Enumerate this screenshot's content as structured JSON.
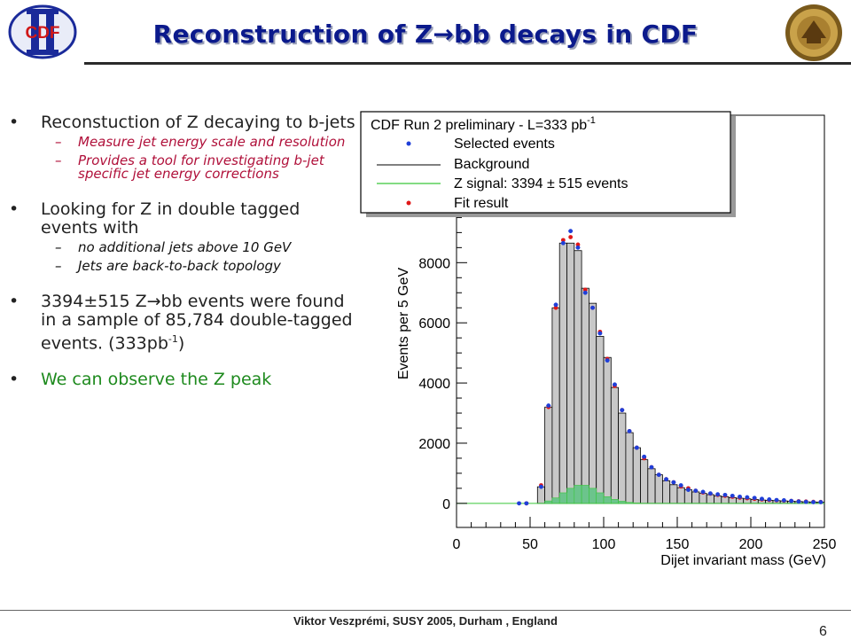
{
  "slide": {
    "title": "Reconstruction of Z→bb decays in CDF",
    "footer": "Viktor Veszprémi, SUSY 2005, Durham , England",
    "page_number": "6",
    "logo_left_text": "CDF"
  },
  "bullets": [
    {
      "text": "Reconstuction of Z decaying to b-jets",
      "subs": [
        "Measure jet energy scale and resolution",
        "Provides a tool for investigating b-jet specific jet energy corrections"
      ]
    },
    {
      "text": "Looking for Z in double tagged events with",
      "subs": [
        "no additional jets above 10 GeV",
        "Jets are back-to-back topology"
      ]
    },
    {
      "text_a": "3394±515 Z",
      "arrow": "→",
      "text_b": "bb events were found in a sample of 85,784 double-tagged events. (333pb",
      "sup": "-1",
      "text_c": ")"
    },
    {
      "text": "We can observe the Z peak"
    }
  ],
  "chart_data": {
    "type": "bar",
    "title": "CDF Run 2 preliminary - L=333 pb",
    "title_sup": "-1",
    "xlabel": "Dijet invariant mass (GeV)",
    "ylabel": "Events per 5 GeV",
    "xlim": [
      0,
      250
    ],
    "ylim": [
      -800,
      12900
    ],
    "xticks": [
      "0",
      "50",
      "100",
      "150",
      "200",
      "250"
    ],
    "yticks": [
      "0",
      "2000",
      "4000",
      "6000",
      "8000"
    ],
    "ytick_values": [
      0,
      2000,
      4000,
      6000,
      8000
    ],
    "legend": [
      {
        "label": "Selected events",
        "marker": "point",
        "color": "#1f3fd8"
      },
      {
        "label": "Background",
        "marker": "line",
        "color": "#000000"
      },
      {
        "label": "Z signal: 3394 ± 515 events",
        "marker": "line",
        "color": "#39c639"
      },
      {
        "label": "Fit result",
        "marker": "point",
        "color": "#e01818"
      }
    ],
    "bin_width": 5,
    "bins_low": [
      55,
      60,
      65,
      70,
      75,
      80,
      85,
      90,
      95,
      100,
      105,
      110,
      115,
      120,
      125,
      130,
      135,
      140,
      145,
      150,
      155,
      160,
      165,
      170,
      175,
      180,
      185,
      190,
      195,
      200,
      205,
      210,
      215,
      220,
      225,
      230,
      235,
      240,
      245
    ],
    "background": [
      550,
      3200,
      6500,
      8650,
      8650,
      8400,
      7150,
      6650,
      5550,
      4850,
      3850,
      3000,
      2350,
      1850,
      1450,
      1150,
      950,
      750,
      620,
      520,
      450,
      380,
      330,
      290,
      250,
      220,
      190,
      170,
      150,
      130,
      110,
      100,
      90,
      80,
      70,
      60,
      50,
      45,
      40
    ],
    "signal": [
      0,
      80,
      180,
      350,
      500,
      600,
      600,
      500,
      350,
      220,
      130,
      70,
      30,
      10,
      0,
      0,
      0,
      0,
      0,
      0,
      0,
      0,
      0,
      0,
      0,
      0,
      0,
      0,
      0,
      0,
      0,
      0,
      0,
      0,
      0,
      0,
      0,
      0,
      0
    ],
    "selected_events": {
      "x": [
        42.5,
        47.5,
        57.5,
        62.5,
        67.5,
        72.5,
        77.5,
        82.5,
        87.5,
        92.5,
        97.5,
        102.5,
        107.5,
        112.5,
        117.5,
        122.5,
        127.5,
        132.5,
        137.5,
        142.5,
        147.5,
        152.5,
        157.5,
        162.5,
        167.5,
        172.5,
        177.5,
        182.5,
        187.5,
        192.5,
        197.5,
        202.5,
        207.5,
        212.5,
        217.5,
        222.5,
        227.5,
        232.5,
        237.5,
        242.5,
        247.5
      ],
      "y": [
        0,
        0,
        550,
        3250,
        6600,
        8650,
        9050,
        8500,
        7000,
        6500,
        5650,
        4750,
        3950,
        3100,
        2400,
        1850,
        1550,
        1200,
        950,
        800,
        700,
        600,
        450,
        420,
        380,
        330,
        300,
        280,
        250,
        220,
        200,
        180,
        150,
        130,
        110,
        100,
        80,
        60,
        50,
        40,
        40
      ]
    },
    "fit_result": {
      "x": [
        47.5,
        57.5,
        62.5,
        67.5,
        72.5,
        77.5,
        82.5,
        87.5,
        92.5,
        97.5,
        102.5,
        107.5,
        112.5,
        117.5,
        122.5,
        127.5,
        132.5,
        137.5,
        142.5,
        147.5,
        152.5,
        157.5,
        162.5,
        167.5,
        172.5,
        177.5,
        182.5,
        187.5,
        192.5,
        197.5,
        202.5,
        207.5,
        212.5,
        217.5,
        222.5,
        227.5,
        232.5,
        237.5,
        242.5,
        247.5
      ],
      "y": [
        0,
        600,
        3200,
        6500,
        8750,
        8850,
        8600,
        7100,
        6500,
        5700,
        4800,
        3900,
        3100,
        2400,
        1850,
        1500,
        1200,
        950,
        800,
        700,
        560,
        500,
        420,
        360,
        320,
        280,
        250,
        220,
        190,
        170,
        150,
        130,
        110,
        100,
        90,
        80,
        70,
        60,
        50,
        45
      ]
    },
    "colors": {
      "background_fill": "#c8c8c8",
      "signal_fill": "#6cc48c",
      "selected": "#1f3fd8",
      "fit": "#e01818"
    }
  }
}
